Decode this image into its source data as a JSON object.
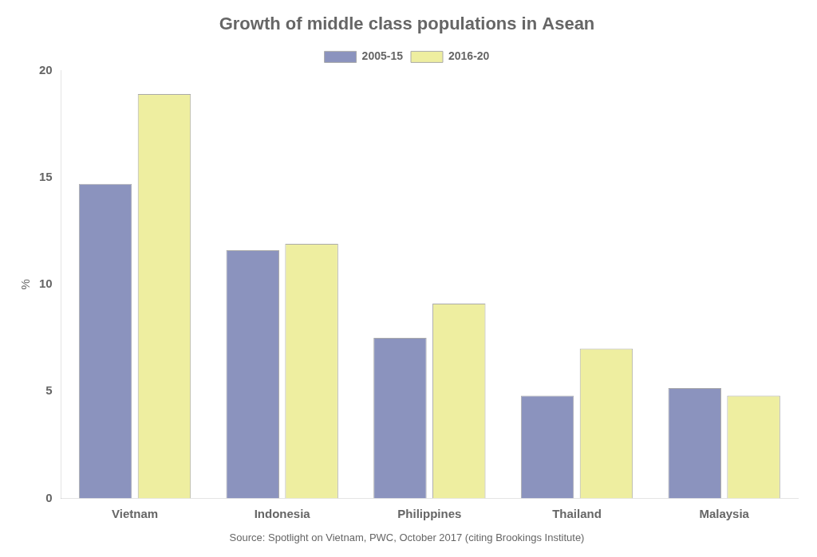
{
  "chart_data": {
    "type": "bar",
    "title": "Growth of middle class populations in Asean",
    "categories": [
      "Vietnam",
      "Indonesia",
      "Philippines",
      "Thailand",
      "Malaysia"
    ],
    "series": [
      {
        "name": "2005-15",
        "color": "#8B93BE",
        "values": [
          14.7,
          11.6,
          7.5,
          4.8,
          5.15
        ]
      },
      {
        "name": "2016-20",
        "color": "#EEEEA0",
        "values": [
          18.9,
          11.9,
          9.1,
          7.0,
          4.8
        ]
      }
    ],
    "ylabel": "%",
    "ylim": [
      0,
      20
    ],
    "yticks": [
      0,
      5,
      10,
      15,
      20
    ],
    "grid": false,
    "legend": "top",
    "annotations": [
      "Source: Spotlight on Vietnam, PWC, October 2017 (citing Brookings Institute)"
    ]
  }
}
